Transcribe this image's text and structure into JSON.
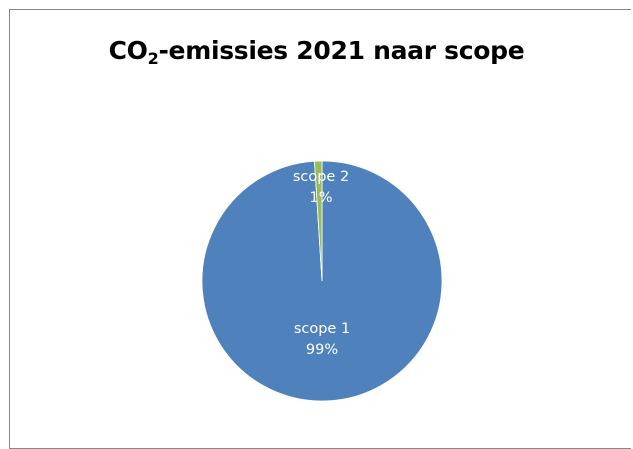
{
  "chart_data": {
    "type": "pie",
    "title": {
      "main": "CO",
      "sub": "2",
      "rest": "-emissies 2021 naar scope"
    },
    "slices": [
      {
        "name": "scope 1",
        "value": 99,
        "value_label": "99%",
        "color": "#4F81BD"
      },
      {
        "name": "scope 2",
        "value": 1,
        "value_label": "1%",
        "color": "#9BBB59"
      }
    ],
    "legend": "none",
    "data_labels": "inside"
  }
}
